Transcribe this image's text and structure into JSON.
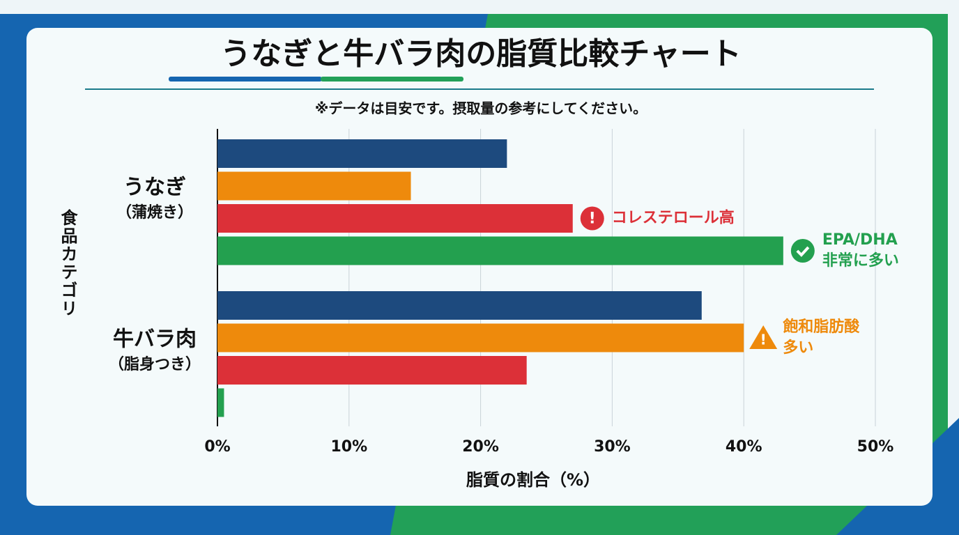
{
  "chart_data": {
    "type": "hbar",
    "title": "うなぎと牛バラ肉の脂質比較チャート",
    "subtitle": "※データは目安です。摂取量の参考にしてください。",
    "categories": [
      "うなぎ",
      "牛バラ肉"
    ],
    "category_sublabels": [
      "（蒲焼き）",
      "（脂身つき）"
    ],
    "series": [
      {
        "color": "#1d4a7e",
        "values": [
          22,
          36.8
        ]
      },
      {
        "color": "#ee8a0c",
        "values": [
          14.7,
          40
        ]
      },
      {
        "color": "#dc3038",
        "values": [
          27,
          23.5
        ]
      },
      {
        "color": "#23a04f",
        "values": [
          43,
          0.5
        ]
      }
    ],
    "xlim": [
      0,
      50
    ],
    "xticks": [
      {
        "value": 0,
        "label": "0%"
      },
      {
        "value": 10,
        "label": "10%"
      },
      {
        "value": 20,
        "label": "20%"
      },
      {
        "value": 30,
        "label": "30%"
      },
      {
        "value": 40,
        "label": "40%"
      },
      {
        "value": 50,
        "label": "50%"
      }
    ],
    "xlabel": "脂質の割合（%）",
    "ylabel": "食品カテゴリ",
    "grid": true,
    "annotations": [
      {
        "lines": [
          "コレステロール高"
        ]
      },
      {
        "lines": [
          "EPA/DHA",
          "非常に多い"
        ]
      },
      {
        "lines": [
          "飽和脂肪酸",
          "多い"
        ]
      }
    ]
  }
}
